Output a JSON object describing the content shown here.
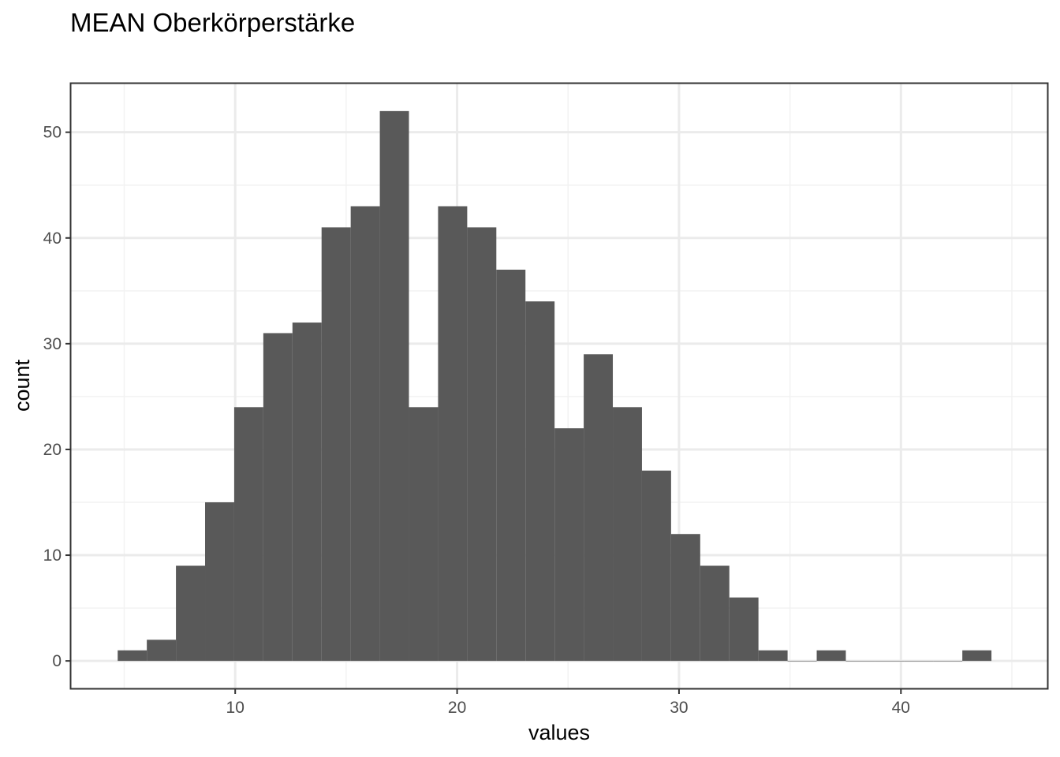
{
  "chart_data": {
    "type": "bar",
    "title": "MEAN Oberkörperstärke",
    "xlabel": "values",
    "ylabel": "count",
    "x_ticks": [
      10,
      20,
      30,
      40
    ],
    "y_ticks": [
      0,
      10,
      20,
      30,
      40,
      50
    ],
    "x_tick_labels": [
      "10",
      "20",
      "30",
      "40"
    ],
    "y_tick_labels": [
      "0",
      "10",
      "20",
      "30",
      "40",
      "50"
    ],
    "xlim": [
      2.6,
      46.6
    ],
    "ylim": [
      -2.6,
      54.6
    ],
    "bin_width": 1.3125,
    "bin_start": 4.705,
    "values": [
      1,
      2,
      9,
      15,
      24,
      31,
      32,
      41,
      43,
      52,
      24,
      43,
      41,
      37,
      34,
      22,
      29,
      24,
      18,
      12,
      9,
      6,
      1,
      0,
      1,
      0,
      0,
      0,
      0,
      1
    ],
    "grid": true,
    "legend": "none",
    "bar_color": "#595959",
    "panel_border_color": "#333333",
    "grid_major_color": "#ebebeb",
    "grid_minor_color": "#f2f2f2"
  }
}
